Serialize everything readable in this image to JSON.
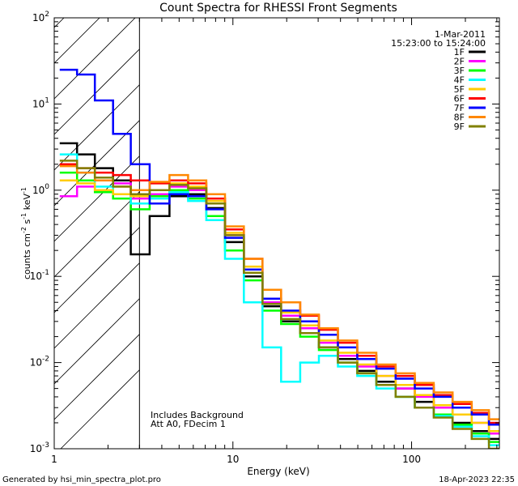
{
  "chart_data": {
    "type": "line",
    "title": "Count Spectra for RHESSI Front Segments",
    "xlabel": "Energy (keV)",
    "ylabel_parts": [
      "counts cm",
      "-2",
      " s",
      "-1",
      " keV",
      "-1"
    ],
    "xscale": "log",
    "yscale": "log",
    "xlim": [
      1,
      310
    ],
    "ylim": [
      0.001,
      100
    ],
    "x_ticks": [
      {
        "value": 1,
        "label": "1"
      },
      {
        "value": 10,
        "label": "10"
      },
      {
        "value": 100,
        "label": "100"
      }
    ],
    "y_ticks": [
      {
        "value": 0.001,
        "base": "10",
        "exp": "-3"
      },
      {
        "value": 0.01,
        "base": "10",
        "exp": "-2"
      },
      {
        "value": 0.1,
        "base": "10",
        "exp": "-1"
      },
      {
        "value": 1,
        "base": "10",
        "exp": "0"
      },
      {
        "value": 10,
        "base": "10",
        "exp": "1"
      },
      {
        "value": 100,
        "base": "10",
        "exp": "2"
      }
    ],
    "hatched_region": [
      1,
      3
    ],
    "date": "1-Mar-2011",
    "time_range": "15:23:00 to 15:24:00",
    "annotations": [
      "Includes Background",
      "Att A0, FDecim 1"
    ],
    "legend_position": "top-right",
    "series": [
      {
        "name": "1F",
        "color": "#000000",
        "x": [
          1.2,
          1.5,
          1.9,
          2.4,
          3.0,
          3.9,
          5.0,
          6.3,
          8.0,
          10.2,
          13.0,
          16.5,
          21.0,
          27.0,
          34.0,
          44.0,
          56.0,
          72.0,
          92.0,
          118.0,
          150.0,
          192.0,
          245.0,
          300.0
        ],
        "y": [
          3.5,
          2.6,
          1.8,
          1.3,
          0.18,
          0.5,
          0.85,
          0.9,
          0.62,
          0.25,
          0.1,
          0.045,
          0.03,
          0.022,
          0.015,
          0.011,
          0.008,
          0.006,
          0.005,
          0.0035,
          0.003,
          0.002,
          0.0016,
          0.0013
        ]
      },
      {
        "name": "2F",
        "color": "#ff00ff",
        "x": [
          1.2,
          1.5,
          1.9,
          2.4,
          3.0,
          3.9,
          5.0,
          6.3,
          8.0,
          10.2,
          13.0,
          16.5,
          21.0,
          27.0,
          34.0,
          44.0,
          56.0,
          72.0,
          92.0,
          118.0,
          150.0,
          192.0,
          245.0,
          300.0
        ],
        "y": [
          0.85,
          1.1,
          1.3,
          1.2,
          0.8,
          0.9,
          1.1,
          1.0,
          0.7,
          0.3,
          0.12,
          0.05,
          0.035,
          0.025,
          0.017,
          0.012,
          0.009,
          0.007,
          0.005,
          0.004,
          0.003,
          0.0025,
          0.002,
          0.0015
        ]
      },
      {
        "name": "3F",
        "color": "#00ff00",
        "x": [
          1.2,
          1.5,
          1.9,
          2.4,
          3.0,
          3.9,
          5.0,
          6.3,
          8.0,
          10.2,
          13.0,
          16.5,
          21.0,
          27.0,
          34.0,
          44.0,
          56.0,
          72.0,
          92.0,
          118.0,
          150.0,
          192.0,
          245.0,
          300.0
        ],
        "y": [
          1.6,
          1.3,
          0.95,
          0.8,
          0.6,
          0.85,
          1.0,
          0.8,
          0.5,
          0.2,
          0.09,
          0.04,
          0.028,
          0.02,
          0.014,
          0.01,
          0.0075,
          0.0055,
          0.004,
          0.003,
          0.0025,
          0.0019,
          0.0015,
          0.0012
        ]
      },
      {
        "name": "4F",
        "color": "#00ffff",
        "x": [
          1.2,
          1.5,
          1.9,
          2.4,
          3.0,
          3.9,
          5.0,
          6.3,
          8.0,
          10.2,
          13.0,
          16.5,
          21.0,
          27.0,
          34.0,
          44.0,
          56.0,
          72.0,
          92.0,
          118.0,
          150.0,
          192.0,
          245.0,
          300.0
        ],
        "y": [
          2.6,
          1.6,
          1.1,
          0.9,
          0.7,
          0.8,
          0.95,
          0.75,
          0.45,
          0.16,
          0.05,
          0.015,
          0.006,
          0.01,
          0.012,
          0.009,
          0.007,
          0.005,
          0.004,
          0.003,
          0.0024,
          0.0018,
          0.0014,
          0.0011
        ]
      },
      {
        "name": "5F",
        "color": "#ffcc00",
        "x": [
          1.2,
          1.5,
          1.9,
          2.4,
          3.0,
          3.9,
          5.0,
          6.3,
          8.0,
          10.2,
          13.0,
          16.5,
          21.0,
          27.0,
          34.0,
          44.0,
          56.0,
          72.0,
          92.0,
          118.0,
          150.0,
          192.0,
          245.0,
          300.0
        ],
        "y": [
          1.3,
          1.2,
          1.0,
          0.9,
          0.85,
          1.0,
          1.2,
          1.1,
          0.75,
          0.32,
          0.13,
          0.055,
          0.038,
          0.027,
          0.018,
          0.013,
          0.0095,
          0.007,
          0.0055,
          0.0042,
          0.0032,
          0.0025,
          0.002,
          0.0016
        ]
      },
      {
        "name": "6F",
        "color": "#ff0000",
        "x": [
          1.2,
          1.5,
          1.9,
          2.4,
          3.0,
          3.9,
          5.0,
          6.3,
          8.0,
          10.2,
          13.0,
          16.5,
          21.0,
          27.0,
          34.0,
          44.0,
          56.0,
          72.0,
          92.0,
          118.0,
          150.0,
          192.0,
          245.0,
          300.0
        ],
        "y": [
          2.0,
          1.8,
          1.6,
          1.5,
          1.3,
          1.2,
          1.3,
          1.2,
          0.8,
          0.35,
          0.16,
          0.07,
          0.05,
          0.035,
          0.024,
          0.017,
          0.012,
          0.009,
          0.007,
          0.0055,
          0.0042,
          0.0033,
          0.0026,
          0.002
        ]
      },
      {
        "name": "7F",
        "color": "#0000ff",
        "x": [
          1.2,
          1.5,
          1.9,
          2.4,
          3.0,
          3.9,
          5.0,
          6.3,
          8.0,
          10.2,
          13.0,
          16.5,
          21.0,
          27.0,
          34.0,
          44.0,
          56.0,
          72.0,
          92.0,
          118.0,
          150.0,
          192.0,
          245.0,
          300.0
        ],
        "y": [
          25,
          22,
          11,
          4.5,
          2.0,
          0.7,
          0.9,
          0.85,
          0.6,
          0.28,
          0.12,
          0.055,
          0.04,
          0.03,
          0.021,
          0.015,
          0.011,
          0.0085,
          0.0065,
          0.005,
          0.004,
          0.003,
          0.0025,
          0.0019
        ]
      },
      {
        "name": "8F",
        "color": "#ff8800",
        "x": [
          1.2,
          1.5,
          1.9,
          2.4,
          3.0,
          3.9,
          5.0,
          6.3,
          8.0,
          10.2,
          13.0,
          16.5,
          21.0,
          27.0,
          34.0,
          44.0,
          56.0,
          72.0,
          92.0,
          118.0,
          150.0,
          192.0,
          245.0,
          300.0
        ],
        "y": [
          1.9,
          1.6,
          1.3,
          1.1,
          1.0,
          1.25,
          1.5,
          1.3,
          0.9,
          0.38,
          0.16,
          0.07,
          0.05,
          0.036,
          0.025,
          0.018,
          0.013,
          0.0095,
          0.0075,
          0.0058,
          0.0045,
          0.0035,
          0.0028,
          0.0022
        ]
      },
      {
        "name": "9F",
        "color": "#808000",
        "x": [
          1.2,
          1.5,
          1.9,
          2.4,
          3.0,
          3.9,
          5.0,
          6.3,
          8.0,
          10.2,
          13.0,
          16.5,
          21.0,
          27.0,
          34.0,
          44.0,
          56.0,
          72.0,
          92.0,
          118.0,
          150.0,
          192.0,
          245.0,
          300.0
        ],
        "y": [
          2.2,
          1.8,
          1.4,
          1.1,
          0.9,
          1.0,
          1.15,
          1.05,
          0.7,
          0.3,
          0.11,
          0.048,
          0.032,
          0.022,
          0.015,
          0.01,
          0.0075,
          0.0055,
          0.004,
          0.003,
          0.0023,
          0.0017,
          0.0013,
          0.001
        ]
      }
    ]
  },
  "footer": {
    "generated_by": "Generated by hsi_min_spectra_plot.pro",
    "timestamp": "18-Apr-2023 22:35"
  }
}
